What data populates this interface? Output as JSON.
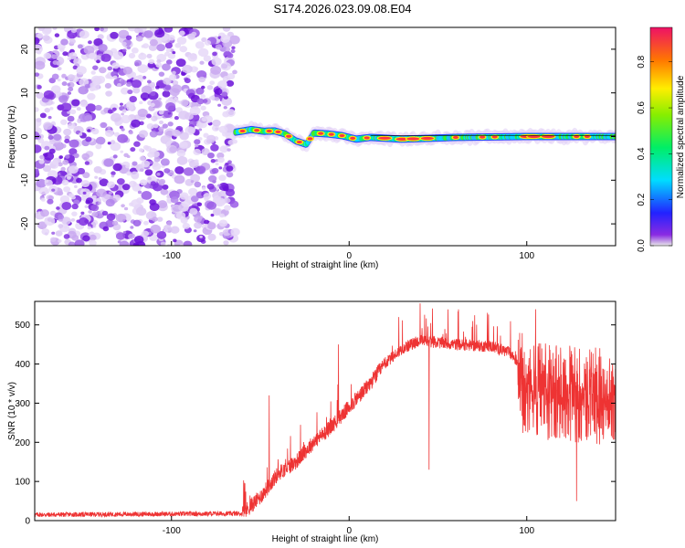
{
  "figure_title": "S174.2026.023.09.08.E04",
  "chart_data": [
    {
      "type": "heatmap",
      "title": "S174.2026.023.09.08.E04",
      "xlabel": "Height of straight line (km)",
      "ylabel": "Frequency (Hz)",
      "xlim": [
        -177,
        150
      ],
      "ylim": [
        -25,
        25
      ],
      "xticks": [
        -100,
        0,
        100
      ],
      "yticks": [
        -20,
        -10,
        0,
        10,
        20
      ],
      "noise_region_x": [
        -177,
        -64
      ],
      "signal_track": [
        {
          "x": -64,
          "y": 1.0
        },
        {
          "x": -55,
          "y": 1.6
        },
        {
          "x": -48,
          "y": 1.2
        },
        {
          "x": -42,
          "y": 1.3
        },
        {
          "x": -36,
          "y": 0.6
        },
        {
          "x": -30,
          "y": -1.0
        },
        {
          "x": -24,
          "y": -1.8
        },
        {
          "x": -20,
          "y": 0.8
        },
        {
          "x": -12,
          "y": 0.6
        },
        {
          "x": -4,
          "y": 0.2
        },
        {
          "x": 4,
          "y": -0.6
        },
        {
          "x": 12,
          "y": -0.2
        },
        {
          "x": 30,
          "y": -0.6
        },
        {
          "x": 60,
          "y": -0.2
        },
        {
          "x": 100,
          "y": 0.0
        },
        {
          "x": 150,
          "y": 0.0
        }
      ],
      "colorbar": {
        "label": "Normalized spectral amplitude",
        "range": [
          0,
          0.95
        ],
        "ticks": [
          "0.0",
          "0.2",
          "0.4",
          "0.6",
          "0.8"
        ]
      }
    },
    {
      "type": "line",
      "xlabel": "Height of straight line (km)",
      "ylabel": "SNR (10 * v/v)",
      "xlim": [
        -177,
        150
      ],
      "ylim": [
        0,
        560
      ],
      "xticks": [
        -100,
        0,
        100
      ],
      "yticks": [
        0,
        100,
        200,
        300,
        400,
        500
      ],
      "series": [
        {
          "name": "SNR",
          "color": "#ee3333",
          "envelope": [
            {
              "x": -177,
              "y": 15
            },
            {
              "x": -60,
              "y": 18
            },
            {
              "x": -50,
              "y": 60
            },
            {
              "x": -40,
              "y": 120
            },
            {
              "x": -30,
              "y": 150
            },
            {
              "x": -20,
              "y": 200
            },
            {
              "x": -10,
              "y": 240
            },
            {
              "x": 0,
              "y": 290
            },
            {
              "x": 10,
              "y": 340
            },
            {
              "x": 20,
              "y": 400
            },
            {
              "x": 30,
              "y": 440
            },
            {
              "x": 40,
              "y": 460
            },
            {
              "x": 60,
              "y": 450
            },
            {
              "x": 80,
              "y": 445
            },
            {
              "x": 90,
              "y": 430
            },
            {
              "x": 100,
              "y": 380
            },
            {
              "x": 120,
              "y": 370
            },
            {
              "x": 150,
              "y": 360
            }
          ],
          "peaks": [
            {
              "x": -45,
              "y": 320
            },
            {
              "x": -6,
              "y": 450
            },
            {
              "x": 28,
              "y": 520
            },
            {
              "x": 40,
              "y": 555
            },
            {
              "x": 45,
              "y": 130
            },
            {
              "x": 105,
              "y": 540
            },
            {
              "x": 128,
              "y": 50
            }
          ]
        }
      ]
    }
  ]
}
